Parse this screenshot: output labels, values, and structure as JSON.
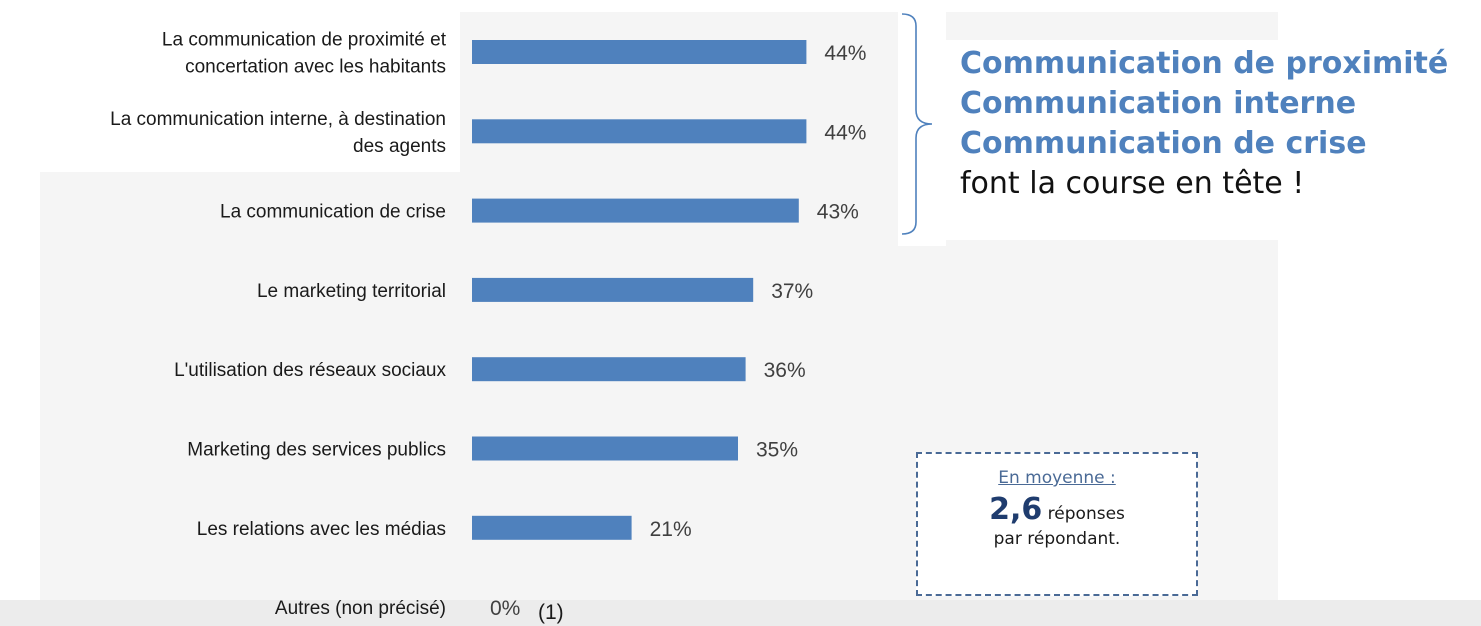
{
  "chart_data": {
    "type": "bar",
    "orientation": "horizontal",
    "categories": [
      [
        "La communication de proximité et",
        "concertation avec les habitants"
      ],
      [
        "La communication interne, à destination",
        "des agents"
      ],
      [
        "La communication de crise"
      ],
      [
        "Le marketing territorial"
      ],
      [
        "L'utilisation des réseaux sociaux"
      ],
      [
        "Marketing des services publics"
      ],
      [
        "Les relations avec les médias"
      ],
      [
        "Autres (non précisé)"
      ]
    ],
    "values": [
      44,
      44,
      43,
      37,
      36,
      35,
      21,
      0
    ],
    "value_labels": [
      "44%",
      "44%",
      "43%",
      "37%",
      "36%",
      "35%",
      "21%",
      "0%"
    ],
    "footnote": "(1)",
    "xlim": [
      0,
      100
    ],
    "bar_color": "#4f81bd",
    "grid": false,
    "legend": "none"
  },
  "headline": {
    "line1": "Communication de proximité",
    "line2": "Communication interne",
    "line3": "Communication de crise",
    "line4": "font la course en tête !"
  },
  "average_box": {
    "title": "En moyenne :",
    "number": "2,6",
    "unit": "réponses",
    "line3": "par répondant."
  },
  "colors": {
    "accent_blue": "#4f81bd",
    "dark_blue": "#1f3c6e",
    "bracket": "#4f81bd",
    "box_border": "#4a6a96"
  }
}
